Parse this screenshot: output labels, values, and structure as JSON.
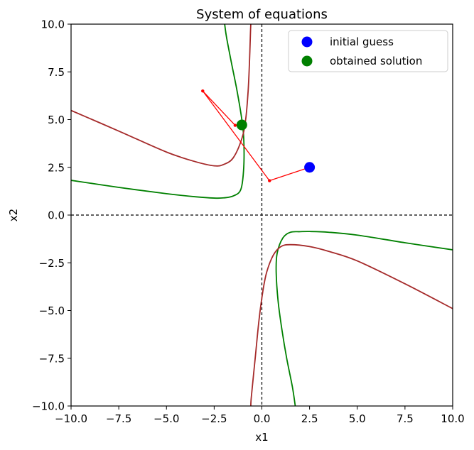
{
  "chart_data": {
    "type": "line",
    "title": "System of equations",
    "xlabel": "x1",
    "ylabel": "x2",
    "xlim": [
      -10,
      10
    ],
    "ylim": [
      -10,
      10
    ],
    "xticks": [
      -10.0,
      -7.5,
      -5.0,
      -2.5,
      0.0,
      2.5,
      5.0,
      7.5,
      10.0
    ],
    "yticks": [
      -10.0,
      -7.5,
      -5.0,
      -2.5,
      0.0,
      2.5,
      5.0,
      7.5,
      10.0
    ],
    "xtick_labels": [
      "−10.0",
      "−7.5",
      "−5.0",
      "−2.5",
      "0.0",
      "2.5",
      "5.0",
      "7.5",
      "10.0"
    ],
    "ytick_labels": [
      "−10.0",
      "−7.5",
      "−5.0",
      "−2.5",
      "0.0",
      "2.5",
      "5.0",
      "7.5",
      "10.0"
    ],
    "grid": false,
    "reference_lines": {
      "x": 0,
      "y": 0,
      "style": "dashed",
      "color": "#000000"
    },
    "curves": [
      {
        "color": "#008000",
        "branches": [
          [
            [
              -10,
              1.82
            ],
            [
              -7.5,
              1.45
            ],
            [
              -5,
              1.12
            ],
            [
              -3.5,
              0.96
            ],
            [
              -2.5,
              0.89
            ],
            [
              -2,
              0.9
            ],
            [
              -1.5,
              1.0
            ],
            [
              -1.1,
              1.35
            ],
            [
              -0.95,
              2.5
            ],
            [
              -0.95,
              4.0
            ],
            [
              -1.05,
              5.0
            ],
            [
              -1.3,
              6.5
            ],
            [
              -1.6,
              8.0
            ],
            [
              -1.85,
              9.3
            ],
            [
              -1.95,
              10
            ]
          ],
          [
            [
              10,
              -1.82
            ],
            [
              7.5,
              -1.45
            ],
            [
              5,
              -1.05
            ],
            [
              3.5,
              -0.9
            ],
            [
              2.5,
              -0.86
            ],
            [
              2,
              -0.87
            ],
            [
              1.5,
              -0.9
            ],
            [
              1.1,
              -1.2
            ],
            [
              0.8,
              -2.0
            ],
            [
              0.75,
              -3.0
            ],
            [
              0.85,
              -4.5
            ],
            [
              1.05,
              -6.0
            ],
            [
              1.3,
              -7.5
            ],
            [
              1.6,
              -9.0
            ],
            [
              1.75,
              -10
            ]
          ]
        ]
      },
      {
        "color": "#a52a2a",
        "branches": [
          [
            [
              -10,
              5.48
            ],
            [
              -7.5,
              4.4
            ],
            [
              -5,
              3.3
            ],
            [
              -3.5,
              2.8
            ],
            [
              -2.5,
              2.58
            ],
            [
              -2,
              2.65
            ],
            [
              -1.5,
              3.0
            ],
            [
              -1.05,
              4.0
            ],
            [
              -0.85,
              5.0
            ],
            [
              -0.72,
              6.5
            ],
            [
              -0.65,
              8.0
            ],
            [
              -0.6,
              9.5
            ],
            [
              -0.58,
              10
            ]
          ],
          [
            [
              10,
              -4.9
            ],
            [
              7.5,
              -3.6
            ],
            [
              5,
              -2.4
            ],
            [
              3.5,
              -1.9
            ],
            [
              2.5,
              -1.65
            ],
            [
              1.5,
              -1.55
            ],
            [
              1.0,
              -1.65
            ],
            [
              0.6,
              -2.1
            ],
            [
              0.25,
              -3.0
            ],
            [
              0.05,
              -4.0
            ],
            [
              -0.15,
              -5.5
            ],
            [
              -0.35,
              -7.5
            ],
            [
              -0.55,
              -9.5
            ],
            [
              -0.58,
              -10
            ]
          ]
        ]
      }
    ],
    "iteration_path": {
      "color": "#ff0000",
      "points": [
        [
          2.5,
          2.5
        ],
        [
          0.4,
          1.8
        ],
        [
          -3.1,
          6.5
        ],
        [
          -1.4,
          4.7
        ],
        [
          -1.05,
          4.72
        ]
      ]
    },
    "markers": [
      {
        "name": "initial guess",
        "x": 2.5,
        "y": 2.5,
        "color": "#0000ff"
      },
      {
        "name": "obtained solution",
        "x": -1.05,
        "y": 4.72,
        "color": "#008000"
      }
    ],
    "legend": {
      "position": "top-right",
      "entries": [
        {
          "label": "initial guess",
          "color": "#0000ff"
        },
        {
          "label": "obtained solution",
          "color": "#008000"
        }
      ]
    }
  }
}
